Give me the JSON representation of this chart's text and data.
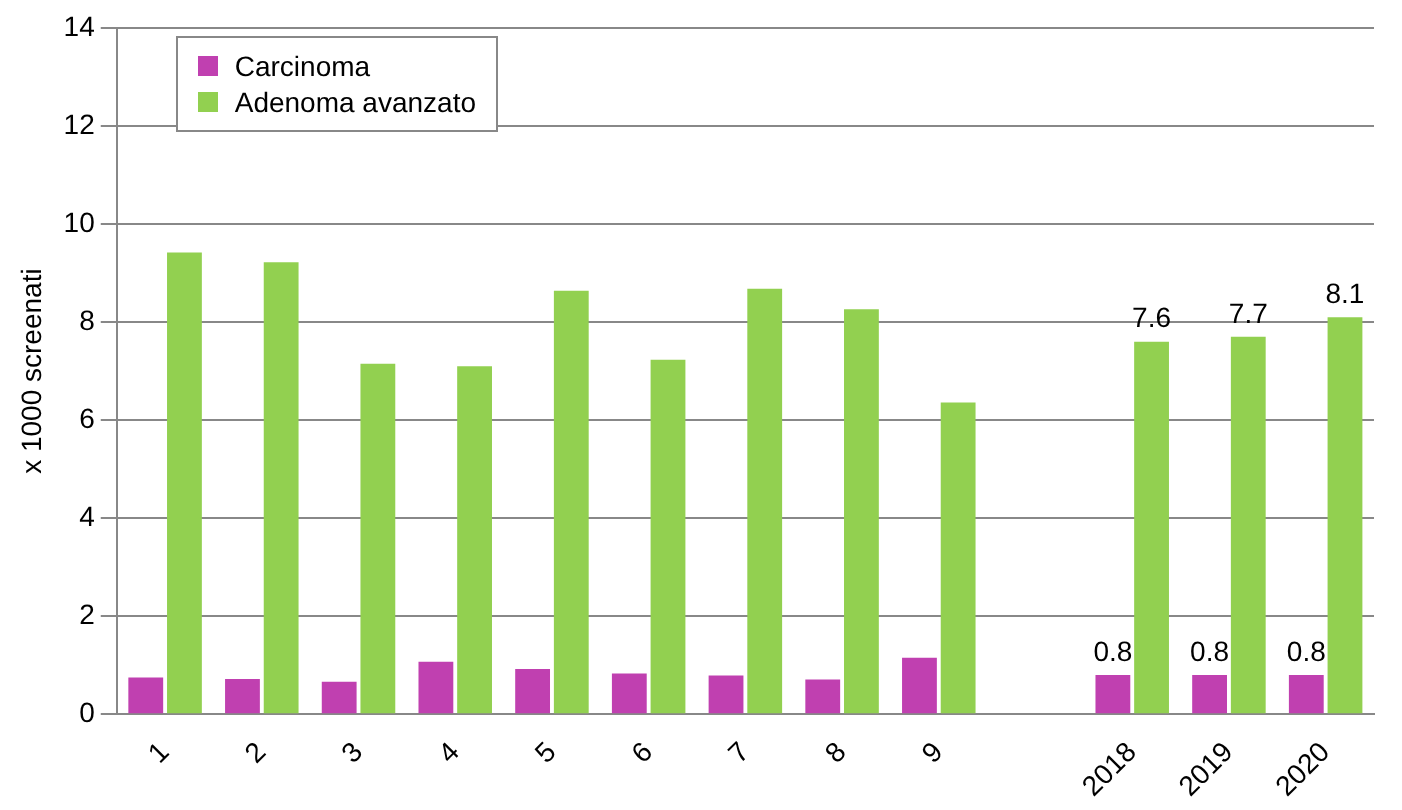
{
  "chart_data": {
    "type": "bar",
    "ylabel": "x 1000 screenati",
    "categories": [
      "1",
      "2",
      "3",
      "4",
      "5",
      "6",
      "7",
      "8",
      "9",
      null,
      "2018",
      "2019",
      "2020"
    ],
    "series": [
      {
        "name": "Carcinoma",
        "color": "#c040b0",
        "values": [
          0.75,
          0.72,
          0.66,
          1.07,
          0.92,
          0.83,
          0.79,
          0.71,
          1.15,
          null,
          0.8,
          0.8,
          0.8
        ],
        "value_labels": [
          null,
          null,
          null,
          null,
          null,
          null,
          null,
          null,
          null,
          null,
          "0.8",
          "0.8",
          "0.8"
        ]
      },
      {
        "name": "Adenoma avanzato",
        "color": "#92d050",
        "values": [
          9.42,
          9.22,
          7.15,
          7.1,
          8.64,
          7.23,
          8.68,
          8.26,
          6.36,
          null,
          7.6,
          7.7,
          8.1
        ],
        "value_labels": [
          null,
          null,
          null,
          null,
          null,
          null,
          null,
          null,
          null,
          null,
          "7.6",
          "7.7",
          "8.1"
        ]
      }
    ],
    "ylim": [
      0,
      14
    ],
    "yticks": [
      0,
      2,
      4,
      6,
      8,
      10,
      12,
      14
    ],
    "grid": "y",
    "legend": "top left"
  }
}
